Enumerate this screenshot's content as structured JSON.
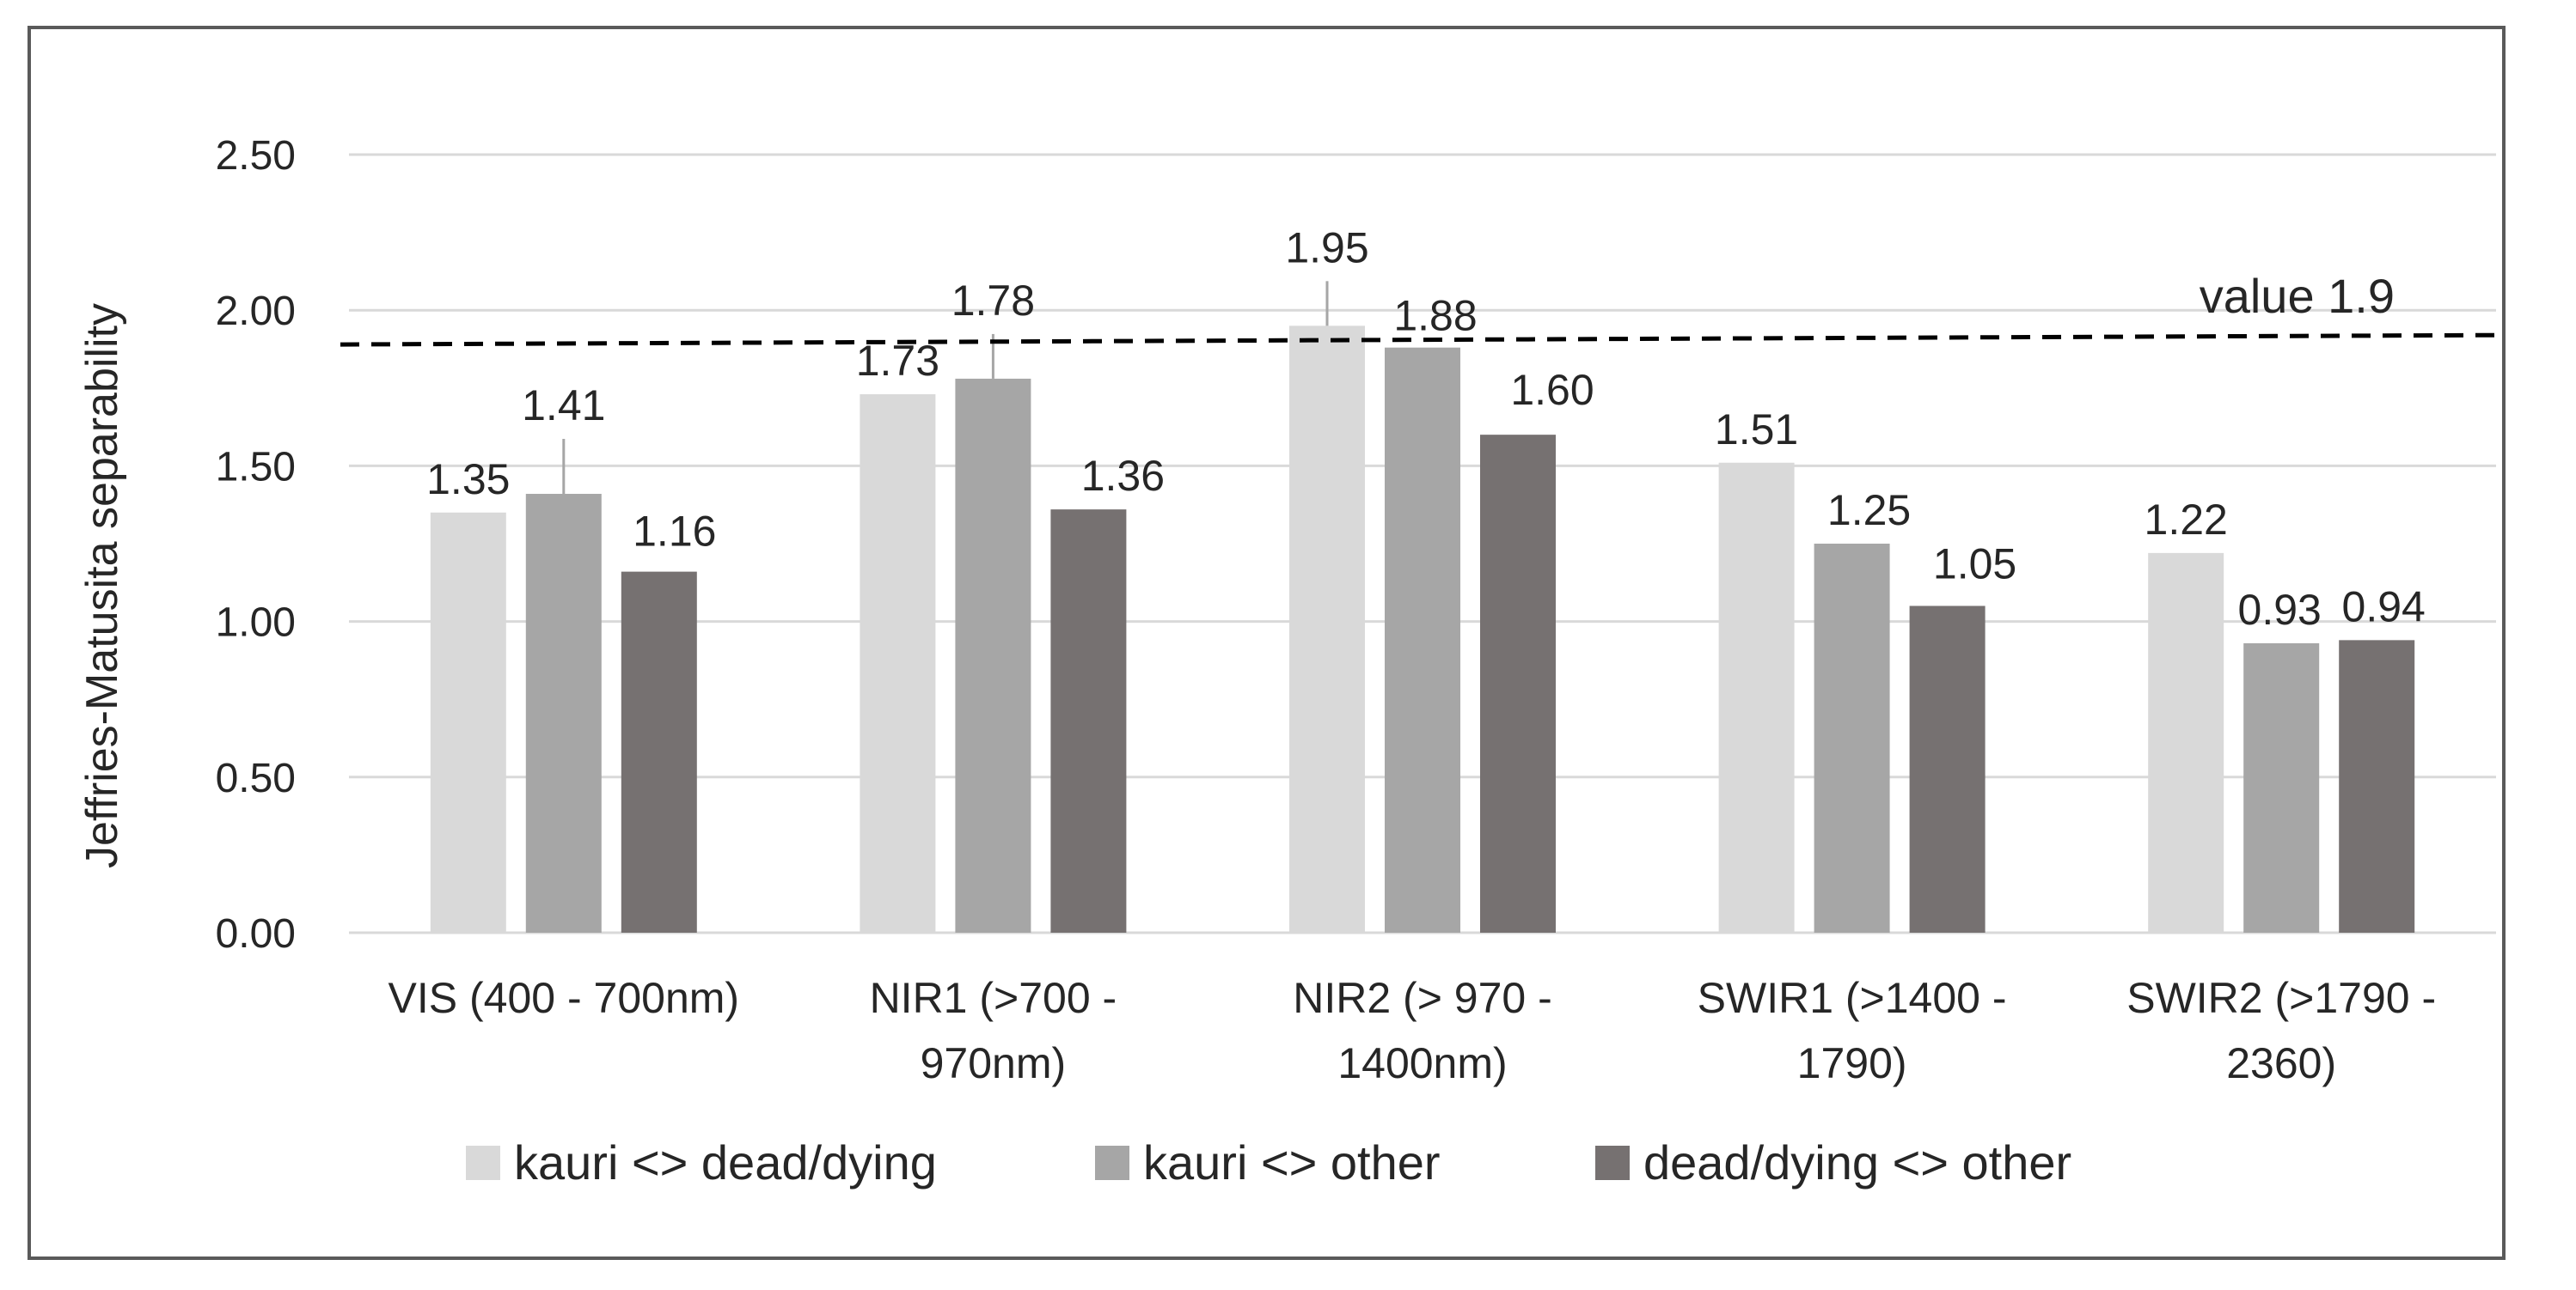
{
  "chart_data": {
    "type": "bar",
    "title": "",
    "xlabel": "",
    "ylabel": "Jeffries-Matusita separability",
    "ylim": [
      0,
      2.5
    ],
    "yticks": [
      "0.00",
      "0.50",
      "1.00",
      "1.50",
      "2.00",
      "2.50"
    ],
    "grid": true,
    "legend_position": "bottom",
    "categories": [
      [
        "VIS (400 - 700nm)"
      ],
      [
        "NIR1 (>700 -",
        "970nm)"
      ],
      [
        "NIR2 (> 970 -",
        "1400nm)"
      ],
      [
        "SWIR1 (>1400 -",
        "1790)"
      ],
      [
        "SWIR2 (>1790 -",
        "2360)"
      ]
    ],
    "series": [
      {
        "name": "kauri <> dead/dying",
        "color": "#d9d9d9",
        "values": [
          1.35,
          1.73,
          1.95,
          1.51,
          1.22
        ],
        "labels": [
          "1.35",
          "1.73",
          "1.95",
          "1.51",
          "1.22"
        ]
      },
      {
        "name": "kauri <> other",
        "color": "#a6a6a6",
        "values": [
          1.41,
          1.78,
          1.88,
          1.25,
          0.93
        ],
        "labels": [
          "1.41",
          "1.78",
          "1.88",
          "1.25",
          "0.93"
        ]
      },
      {
        "name": "dead/dying <> other",
        "color": "#767171",
        "values": [
          1.16,
          1.36,
          1.6,
          1.05,
          0.94
        ],
        "labels": [
          "1.16",
          "1.36",
          "1.60",
          "1.05",
          "0.94"
        ]
      }
    ],
    "reference_line": {
      "label": "value 1.9",
      "value_start": 1.89,
      "value_end": 1.92
    }
  }
}
